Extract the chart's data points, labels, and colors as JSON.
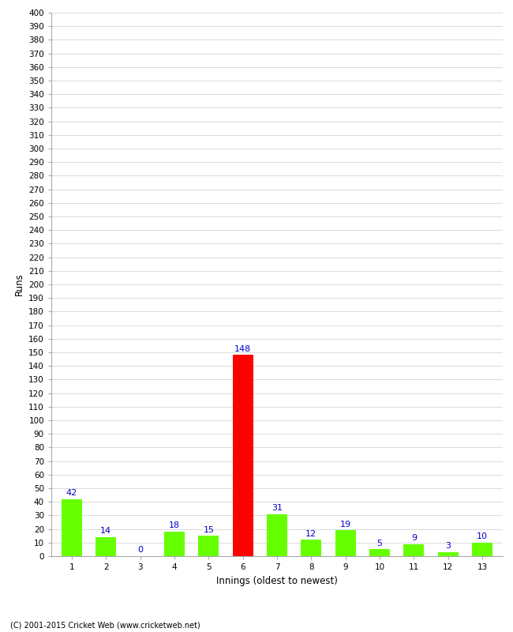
{
  "xlabel": "Innings (oldest to newest)",
  "ylabel": "Runs",
  "categories": [
    "1",
    "2",
    "3",
    "4",
    "5",
    "6",
    "7",
    "8",
    "9",
    "10",
    "11",
    "12",
    "13"
  ],
  "values": [
    42,
    14,
    0,
    18,
    15,
    148,
    31,
    12,
    19,
    5,
    9,
    3,
    10
  ],
  "bar_colors": [
    "#66ff00",
    "#66ff00",
    "#66ff00",
    "#66ff00",
    "#66ff00",
    "#ff0000",
    "#66ff00",
    "#66ff00",
    "#66ff00",
    "#66ff00",
    "#66ff00",
    "#66ff00",
    "#66ff00"
  ],
  "label_color": "#0000cc",
  "ylim": [
    0,
    400
  ],
  "background_color": "#ffffff",
  "grid_color": "#cccccc",
  "footer": "(C) 2001-2015 Cricket Web (www.cricketweb.net)",
  "bar_width": 0.6,
  "tick_fontsize": 7.5,
  "label_fontsize": 8,
  "axis_label_fontsize": 8.5,
  "footer_fontsize": 7
}
